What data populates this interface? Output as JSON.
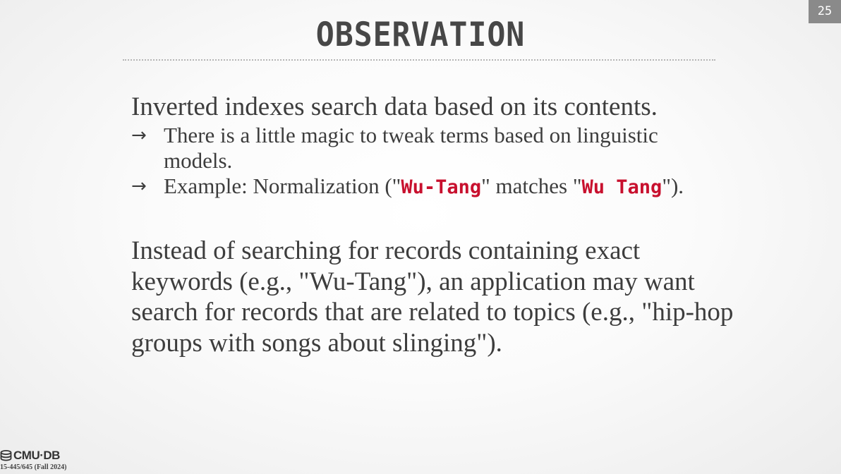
{
  "slide_number": "25",
  "title": "OBSERVATION",
  "intro": "Inverted indexes search data based on its contents.",
  "bullets": [
    {
      "arrow": "→",
      "text": "There is a little magic to tweak terms based on linguistic models."
    },
    {
      "arrow": "→",
      "prefix": "Example: Normalization (\"",
      "code1": "Wu-Tang",
      "middle": "\" matches \"",
      "code2": "Wu Tang",
      "suffix": "\")."
    }
  ],
  "paragraph": "Instead of searching for records containing exact keywords (e.g., \"Wu-Tang\"), an application may want search for records that are related to topics (e.g., \"hip-hop groups with songs about slinging\").",
  "footer": {
    "logo": "CMU·DB",
    "course": "15-445/645 (Fall 2024)"
  },
  "colors": {
    "code": "#c8102e",
    "slide_number_bg": "#8a8a8a",
    "text": "#3d3d3d"
  },
  "icons": {
    "logo": "database-icon",
    "bullet": "right-arrow-icon"
  }
}
